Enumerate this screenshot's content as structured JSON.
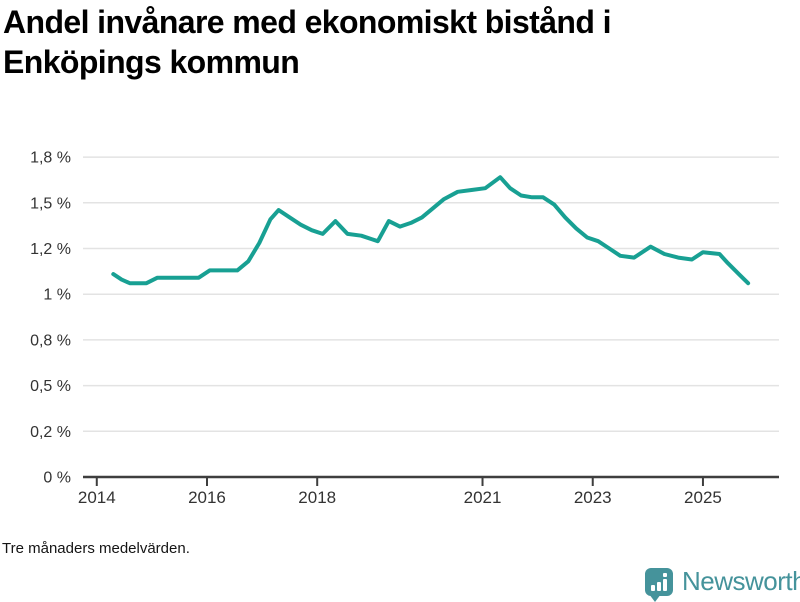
{
  "header": {
    "line1": "Andel invånare med ekonomiskt bistånd i",
    "line2": "Enköpings kommun"
  },
  "footer": {
    "note": "Tre månaders medelvärden.",
    "brand": "Newsworthy",
    "brand_icon": "bar-chart-speech-bubble-icon"
  },
  "colors": {
    "line": "#18a093",
    "grid": "#e3e3e3",
    "axis": "#3e3e3e",
    "tick_text": "#333333",
    "brand_teal": "#45939b"
  },
  "chart_data": {
    "type": "line",
    "title": "Andel invånare med ekonomiskt bistånd i Enköpings kommun",
    "subtitle_note": "Tre månaders medelvärden.",
    "unit": "%",
    "xlabel": "",
    "ylabel": "",
    "grid": true,
    "legend": false,
    "xlim": [
      2013.75,
      2026.38
    ],
    "ylim": [
      0,
      1.84
    ],
    "y_ticks": [
      {
        "value": 1.75,
        "label": "1,8 %"
      },
      {
        "value": 1.5,
        "label": "1,5 %"
      },
      {
        "value": 1.25,
        "label": "1,2 %"
      },
      {
        "value": 1.0,
        "label": "1 %"
      },
      {
        "value": 0.75,
        "label": "0,8 %"
      },
      {
        "value": 0.5,
        "label": "0,5 %"
      },
      {
        "value": 0.25,
        "label": "0,2 %"
      },
      {
        "value": 0,
        "label": "0 %"
      }
    ],
    "x_ticks": [
      {
        "value": 2014,
        "label": "2014"
      },
      {
        "value": 2016,
        "label": "2016"
      },
      {
        "value": 2018,
        "label": "2018"
      },
      {
        "value": 2021,
        "label": "2021"
      },
      {
        "value": 2023,
        "label": "2023"
      },
      {
        "value": 2025,
        "label": "2025"
      }
    ],
    "series": [
      {
        "name": "Andel invånare med ekonomiskt bistånd",
        "x": [
          2014.3,
          2014.45,
          2014.6,
          2014.9,
          2015.1,
          2015.5,
          2015.85,
          2016.05,
          2016.3,
          2016.55,
          2016.75,
          2016.95,
          2017.15,
          2017.3,
          2017.5,
          2017.7,
          2017.9,
          2018.1,
          2018.33,
          2018.55,
          2018.8,
          2019.0,
          2019.1,
          2019.3,
          2019.5,
          2019.7,
          2019.9,
          2020.1,
          2020.3,
          2020.55,
          2020.8,
          2021.05,
          2021.32,
          2021.5,
          2021.7,
          2021.9,
          2022.1,
          2022.3,
          2022.5,
          2022.7,
          2022.9,
          2023.1,
          2023.3,
          2023.5,
          2023.75,
          2024.05,
          2024.3,
          2024.55,
          2024.8,
          2025.0,
          2025.3,
          2025.45,
          2025.65,
          2025.82
        ],
        "y": [
          1.11,
          1.08,
          1.06,
          1.06,
          1.09,
          1.09,
          1.09,
          1.13,
          1.13,
          1.13,
          1.18,
          1.28,
          1.41,
          1.46,
          1.42,
          1.38,
          1.35,
          1.33,
          1.4,
          1.33,
          1.32,
          1.3,
          1.29,
          1.4,
          1.37,
          1.39,
          1.42,
          1.47,
          1.52,
          1.56,
          1.57,
          1.58,
          1.64,
          1.58,
          1.54,
          1.53,
          1.53,
          1.49,
          1.42,
          1.36,
          1.31,
          1.29,
          1.25,
          1.21,
          1.2,
          1.26,
          1.22,
          1.2,
          1.19,
          1.23,
          1.22,
          1.17,
          1.11,
          1.06
        ]
      }
    ]
  }
}
